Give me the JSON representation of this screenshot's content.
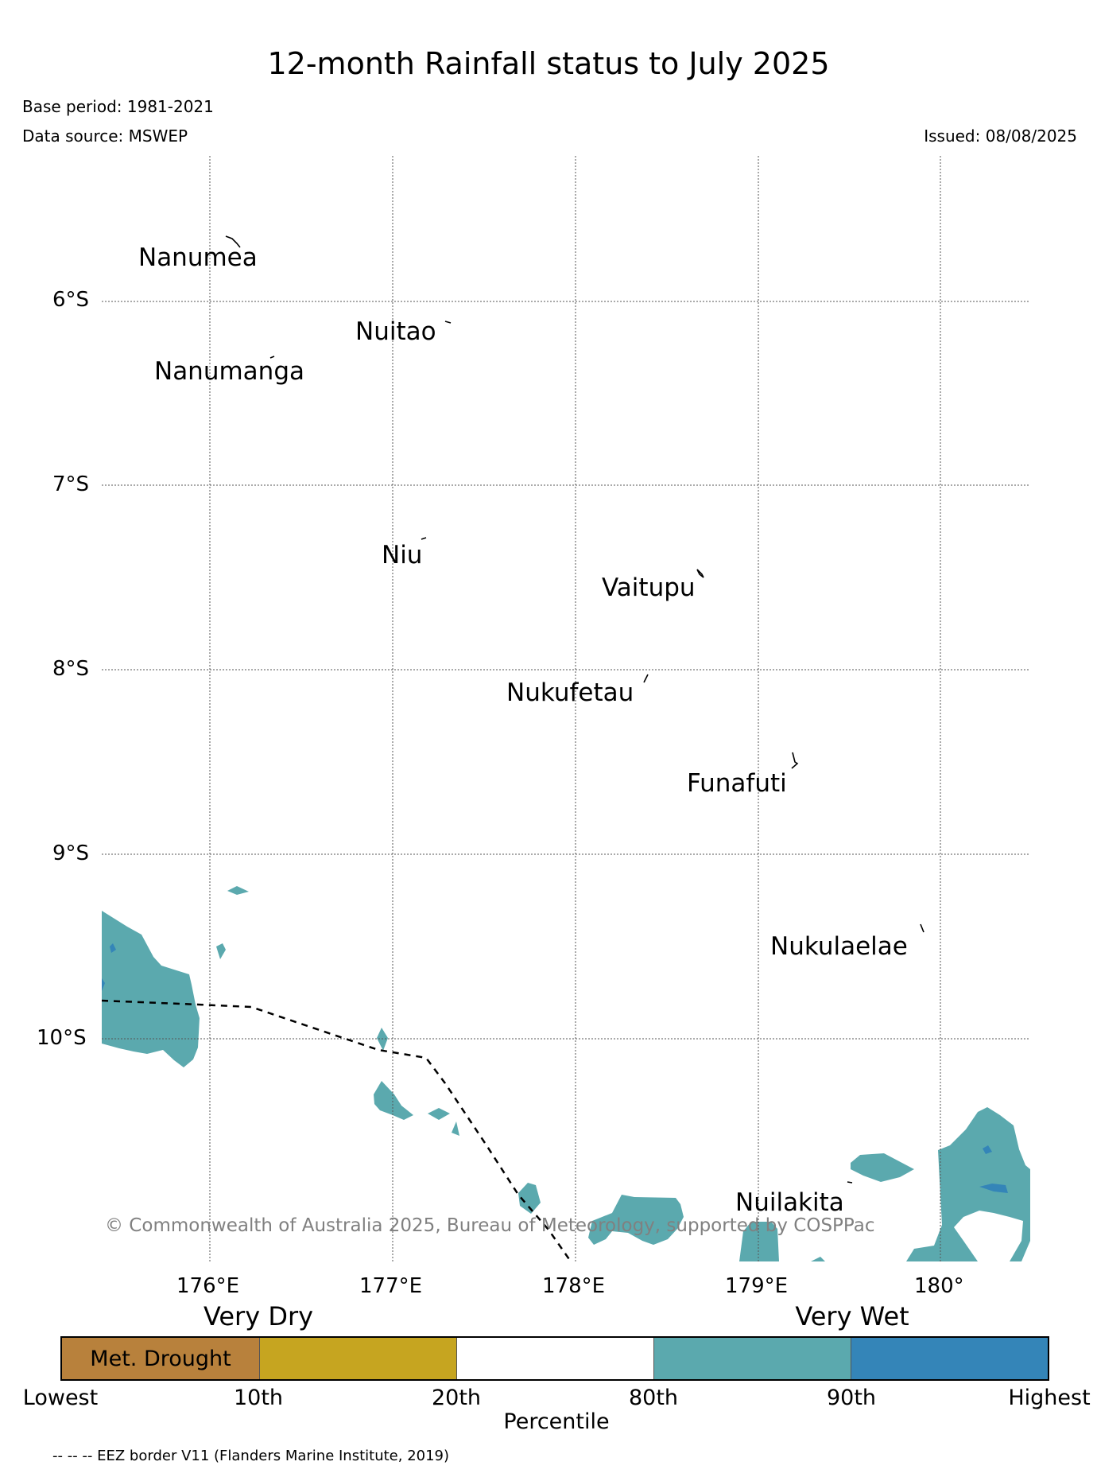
{
  "header": {
    "title": "12-month Rainfall status to July 2025",
    "base_period": "Base period: 1981-2021",
    "data_source": "Data source: MSWEP",
    "issued": "Issued: 08/08/2025"
  },
  "map": {
    "lon_ticks": [
      "176°E",
      "177°E",
      "178°E",
      "179°E",
      "180°"
    ],
    "lat_ticks": [
      "6°S",
      "7°S",
      "8°S",
      "9°S",
      "10°S"
    ],
    "places": [
      "Nanumea",
      "Nuitao",
      "Nanumanga",
      "Niu",
      "Vaitupu",
      "Nukufetau",
      "Funafuti",
      "Nukulaelae",
      "Nuilakita"
    ],
    "copyright": "© Commonwealth of Australia 2025, Bureau of Meteorology, supported by COSPPac",
    "colors": {
      "very_wet_80_90": "#5ba9ae",
      "very_wet_90_plus": "#3485b8",
      "grid": "#555555"
    }
  },
  "legend": {
    "very_dry": "Very Dry",
    "very_wet": "Very Wet",
    "segments": [
      {
        "label": "Met. Drought",
        "color": "#b8813c"
      },
      {
        "label": "",
        "color": "#c6a520"
      },
      {
        "label": "",
        "color": "#ffffff"
      },
      {
        "label": "",
        "color": "#5ba9ae"
      },
      {
        "label": "",
        "color": "#3485b8"
      }
    ],
    "ticks": [
      "Lowest",
      "10th",
      "20th",
      "80th",
      "90th",
      "Highest"
    ],
    "axis_label": "Percentile"
  },
  "footnote": "-- -- -- EEZ border V11 (Flanders Marine Institute, 2019)"
}
